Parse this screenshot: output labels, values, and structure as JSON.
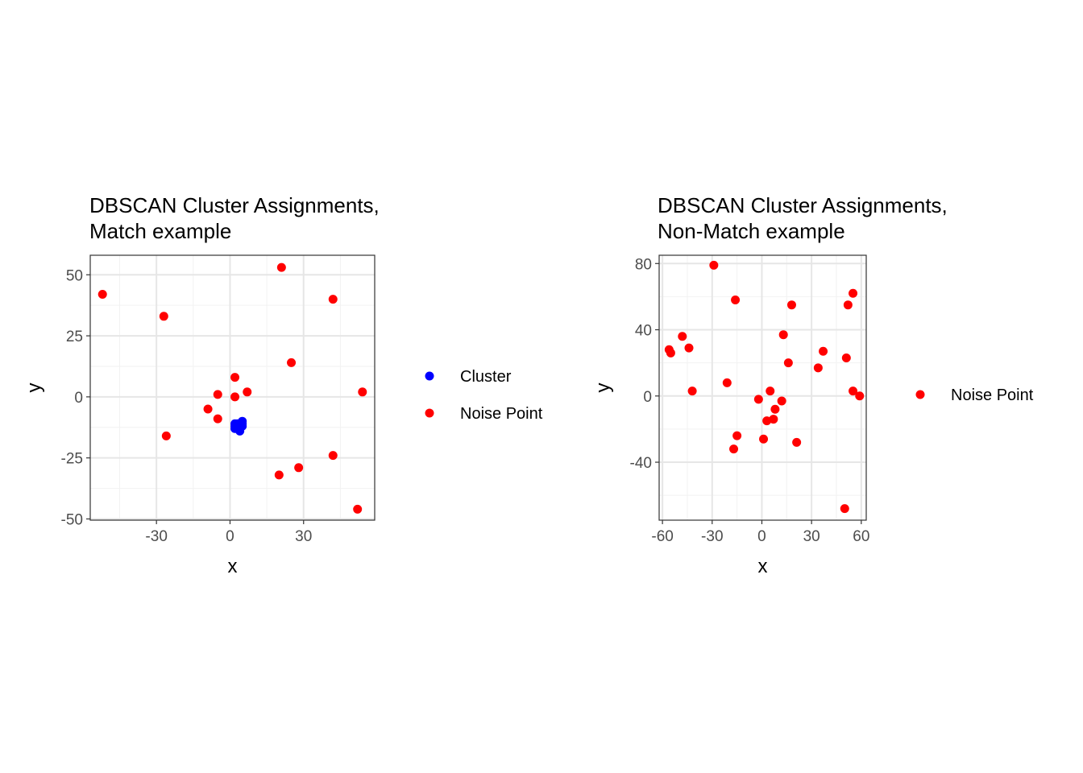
{
  "colors": {
    "cluster": "#0000ff",
    "noise": "#ff0000",
    "grid_major": "#e6e6e6",
    "grid_minor": "#f2f2f2",
    "panel_border": "#333333"
  },
  "chart_data": [
    {
      "type": "scatter",
      "title": "DBSCAN Cluster Assignments,",
      "subtitle": "Match example",
      "xlabel": "x",
      "ylabel": "y",
      "xlim": [
        -57,
        59
      ],
      "ylim": [
        -50.5,
        58
      ],
      "xticks": [
        -30,
        0,
        30
      ],
      "xtick_labels": [
        "-30",
        "0",
        "30"
      ],
      "yticks": [
        50,
        25,
        0,
        -25,
        -50
      ],
      "ytick_labels": [
        "50",
        "25",
        "0",
        "-25",
        "-50"
      ],
      "grid": true,
      "legend_position": "right",
      "series": [
        {
          "name": "Cluster",
          "color": "#0000ff",
          "points": [
            [
              2,
              -11
            ],
            [
              3,
              -12
            ],
            [
              4,
              -11
            ],
            [
              5,
              -10
            ],
            [
              5,
              -12
            ],
            [
              4,
              -13
            ],
            [
              3,
              -13
            ],
            [
              2,
              -12
            ],
            [
              4,
              -14
            ],
            [
              3,
              -11
            ],
            [
              5,
              -11
            ],
            [
              2,
              -13
            ]
          ]
        },
        {
          "name": "Noise Point",
          "color": "#ff0000",
          "points": [
            [
              -52,
              42
            ],
            [
              -27,
              33
            ],
            [
              -26,
              -16
            ],
            [
              -5,
              1
            ],
            [
              -5,
              -9
            ],
            [
              -9,
              -5
            ],
            [
              2,
              8
            ],
            [
              2,
              0
            ],
            [
              7,
              2
            ],
            [
              21,
              53
            ],
            [
              25,
              14
            ],
            [
              42,
              40
            ],
            [
              54,
              2
            ],
            [
              42,
              -24
            ],
            [
              28,
              -29
            ],
            [
              20,
              -32
            ],
            [
              52,
              -46
            ]
          ]
        }
      ]
    },
    {
      "type": "scatter",
      "title": "DBSCAN Cluster Assignments,",
      "subtitle": "Non-Match example",
      "xlabel": "x",
      "ylabel": "y",
      "xlim": [
        -62,
        63
      ],
      "ylim": [
        -75,
        85
      ],
      "xticks": [
        -60,
        -30,
        0,
        30,
        60
      ],
      "xtick_labels": [
        "-60",
        "-30",
        "0",
        "30",
        "60"
      ],
      "yticks": [
        80,
        40,
        0,
        -40
      ],
      "ytick_labels": [
        "80",
        "40",
        "0",
        "-40"
      ],
      "grid": true,
      "legend_position": "right",
      "series": [
        {
          "name": "Noise Point",
          "color": "#ff0000",
          "points": [
            [
              -29,
              79
            ],
            [
              -16,
              58
            ],
            [
              -56,
              28
            ],
            [
              -55,
              26
            ],
            [
              -48,
              36
            ],
            [
              -44,
              29
            ],
            [
              -42,
              3
            ],
            [
              -21,
              8
            ],
            [
              -2,
              -2
            ],
            [
              5,
              3
            ],
            [
              13,
              37
            ],
            [
              18,
              55
            ],
            [
              16,
              20
            ],
            [
              12,
              -3
            ],
            [
              8,
              -8
            ],
            [
              7,
              -14
            ],
            [
              3,
              -15
            ],
            [
              1,
              -26
            ],
            [
              -15,
              -24
            ],
            [
              -17,
              -32
            ],
            [
              21,
              -28
            ],
            [
              34,
              17
            ],
            [
              37,
              27
            ],
            [
              51,
              23
            ],
            [
              52,
              55
            ],
            [
              55,
              62
            ],
            [
              55,
              3
            ],
            [
              59,
              0
            ],
            [
              50,
              -68
            ]
          ]
        }
      ]
    }
  ]
}
